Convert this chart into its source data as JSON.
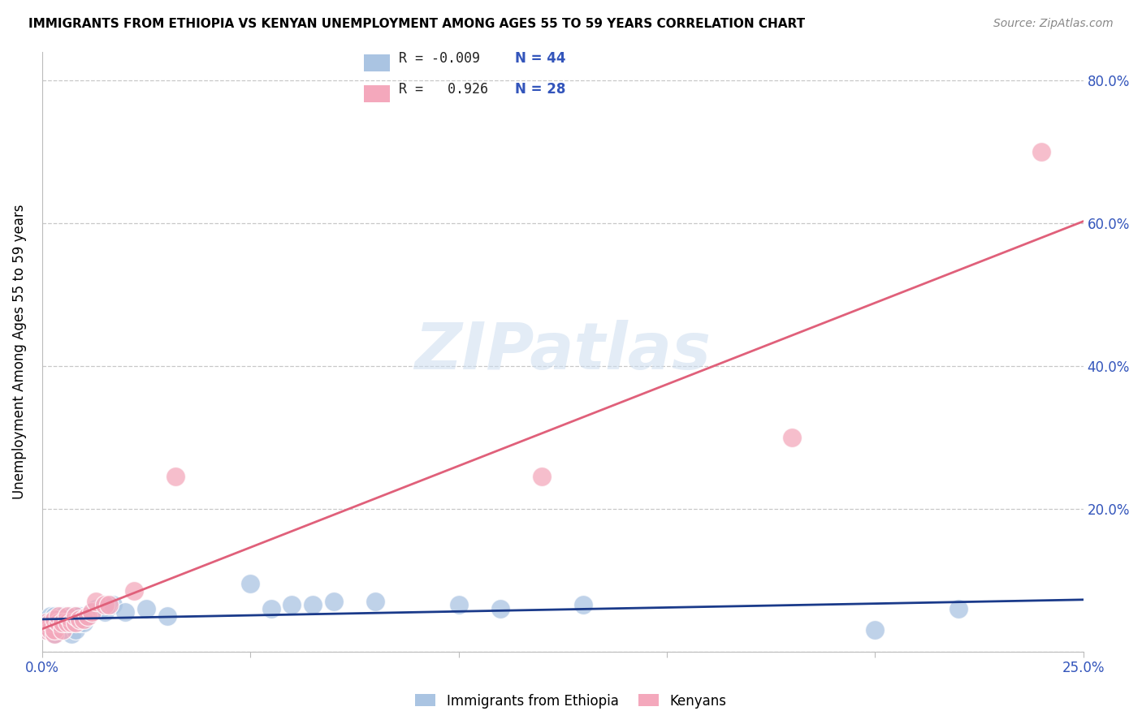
{
  "title": "IMMIGRANTS FROM ETHIOPIA VS KENYAN UNEMPLOYMENT AMONG AGES 55 TO 59 YEARS CORRELATION CHART",
  "source": "Source: ZipAtlas.com",
  "ylabel": "Unemployment Among Ages 55 to 59 years",
  "xlim": [
    0.0,
    0.25
  ],
  "ylim": [
    0.0,
    0.84
  ],
  "xticks": [
    0.0,
    0.05,
    0.1,
    0.15,
    0.2,
    0.25
  ],
  "yticks": [
    0.0,
    0.2,
    0.4,
    0.6,
    0.8
  ],
  "ytick_labels": [
    "",
    "20.0%",
    "40.0%",
    "60.0%",
    "80.0%"
  ],
  "xtick_labels": [
    "0.0%",
    "",
    "",
    "",
    "",
    "25.0%"
  ],
  "legend_r_ethiopia": "-0.009",
  "legend_n_ethiopia": "44",
  "legend_r_kenyan": "0.926",
  "legend_n_kenyan": "28",
  "color_ethiopia": "#aac4e2",
  "color_kenyan": "#f4a8bc",
  "trendline_ethiopia_color": "#1a3a8a",
  "trendline_kenyan_color": "#e0607a",
  "watermark": "ZIPatlas",
  "ethiopia_x": [
    0.001,
    0.001,
    0.002,
    0.002,
    0.002,
    0.003,
    0.003,
    0.003,
    0.003,
    0.004,
    0.004,
    0.005,
    0.005,
    0.005,
    0.006,
    0.006,
    0.007,
    0.007,
    0.007,
    0.008,
    0.008,
    0.009,
    0.009,
    0.01,
    0.011,
    0.012,
    0.013,
    0.014,
    0.015,
    0.017,
    0.02,
    0.025,
    0.03,
    0.05,
    0.055,
    0.06,
    0.065,
    0.07,
    0.08,
    0.1,
    0.11,
    0.13,
    0.2,
    0.22
  ],
  "ethiopia_y": [
    0.03,
    0.04,
    0.03,
    0.04,
    0.05,
    0.025,
    0.03,
    0.04,
    0.05,
    0.03,
    0.04,
    0.03,
    0.04,
    0.05,
    0.035,
    0.04,
    0.025,
    0.04,
    0.05,
    0.03,
    0.05,
    0.04,
    0.05,
    0.04,
    0.05,
    0.055,
    0.06,
    0.06,
    0.055,
    0.065,
    0.055,
    0.06,
    0.05,
    0.095,
    0.06,
    0.065,
    0.065,
    0.07,
    0.07,
    0.065,
    0.06,
    0.065,
    0.03,
    0.06
  ],
  "kenyan_x": [
    0.001,
    0.001,
    0.002,
    0.002,
    0.003,
    0.003,
    0.003,
    0.004,
    0.004,
    0.005,
    0.005,
    0.006,
    0.006,
    0.007,
    0.008,
    0.008,
    0.009,
    0.01,
    0.011,
    0.012,
    0.013,
    0.015,
    0.016,
    0.022,
    0.032,
    0.12,
    0.18,
    0.24
  ],
  "kenyan_y": [
    0.03,
    0.04,
    0.03,
    0.04,
    0.025,
    0.03,
    0.045,
    0.04,
    0.05,
    0.03,
    0.04,
    0.04,
    0.05,
    0.04,
    0.04,
    0.05,
    0.045,
    0.045,
    0.05,
    0.055,
    0.07,
    0.065,
    0.065,
    0.085,
    0.245,
    0.245,
    0.3,
    0.7
  ]
}
